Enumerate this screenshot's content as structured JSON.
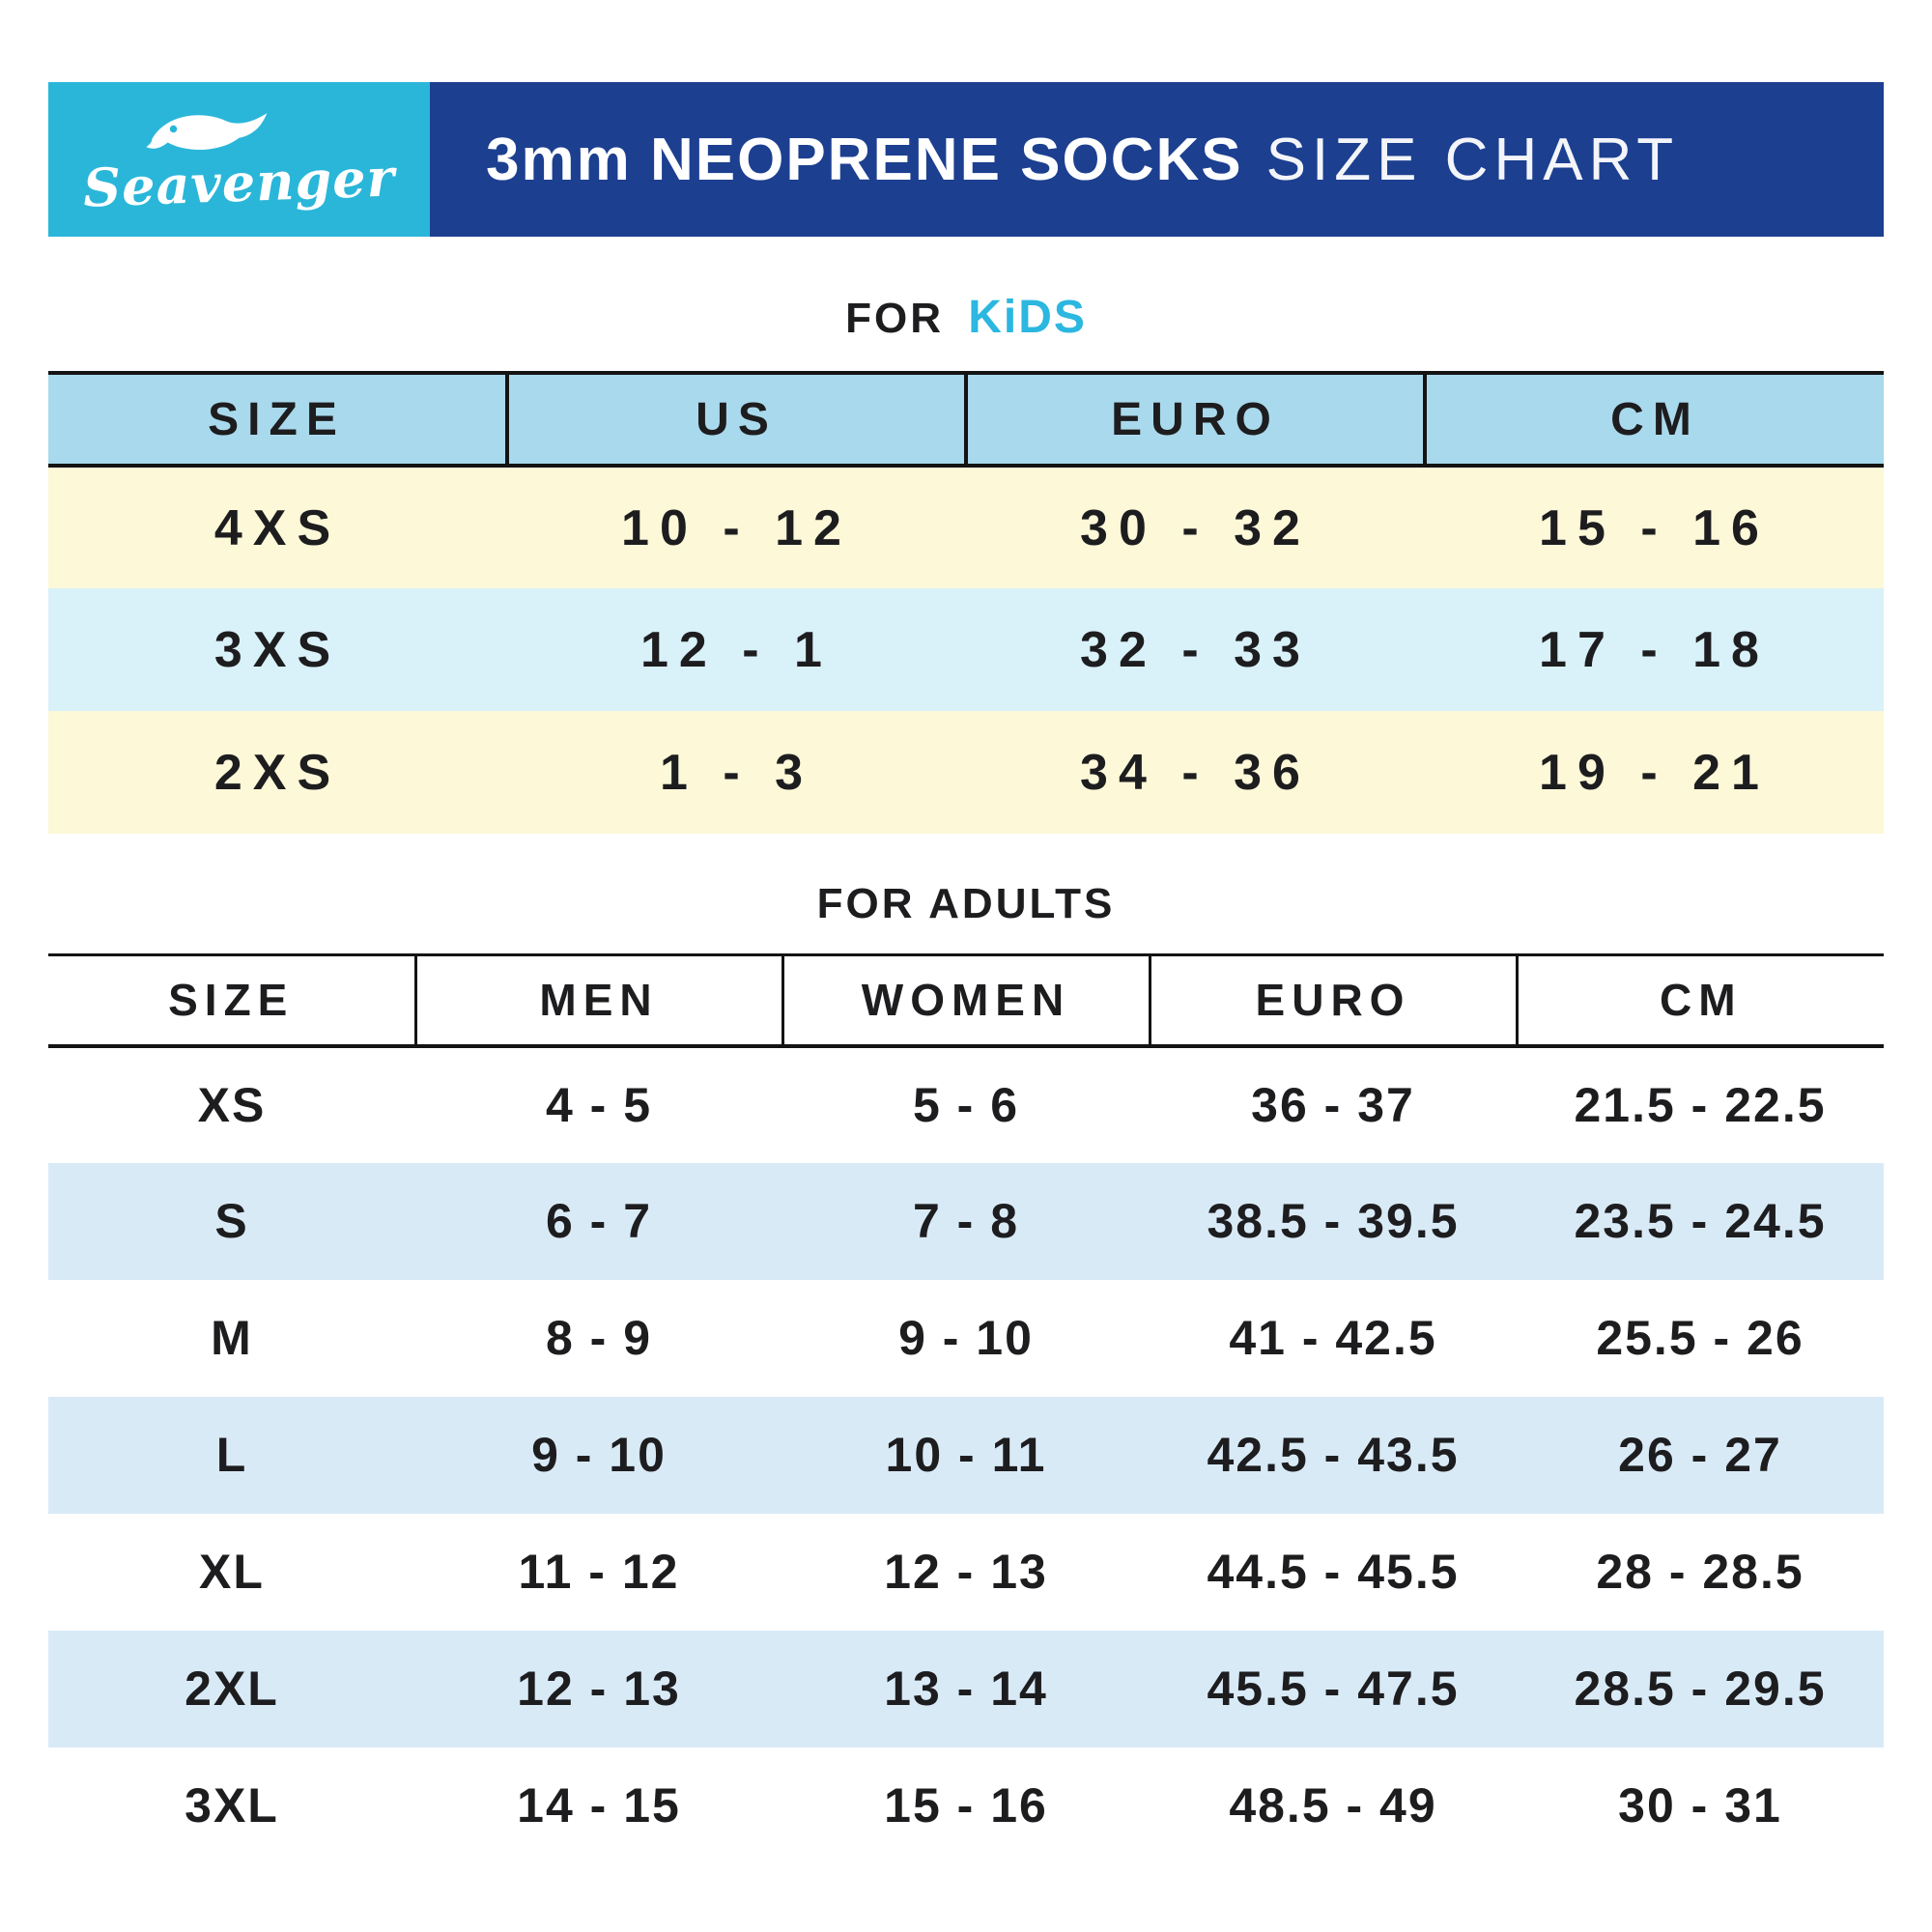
{
  "theme": {
    "brand_bg": "#2ab6d9",
    "bar_bg": "#1c3f90",
    "kids_header_bg": "#a9d9ec",
    "accent_kids": "#2bb7e0",
    "text": "#1d1d1f",
    "kids_row_cream": "#fcf8d8",
    "kids_row_cyan": "#d9f1f9",
    "adults_row_blue": "#d9eaf7"
  },
  "header": {
    "brand": "Seavenger",
    "title_bold": "3mm NEOPRENE SOCKS",
    "title_light": "SIZE CHART"
  },
  "kids": {
    "heading_prefix": "FOR",
    "heading_accent": "KiDS",
    "columns": [
      "SIZE",
      "US",
      "EURO",
      "CM"
    ],
    "rows": [
      [
        "4XS",
        "10 - 12",
        "30 - 32",
        "15 - 16"
      ],
      [
        "3XS",
        "12 - 1",
        "32 - 33",
        "17 - 18"
      ],
      [
        "2XS",
        "1 - 3",
        "34 - 36",
        "19 - 21"
      ]
    ],
    "row_colors": [
      "#fcf8d8",
      "#d9f1f9",
      "#fcf8d8"
    ]
  },
  "adults": {
    "heading": "FOR ADULTS",
    "columns": [
      "SIZE",
      "MEN",
      "WOMEN",
      "EURO",
      "CM"
    ],
    "rows": [
      [
        "XS",
        "4 - 5",
        "5 - 6",
        "36 - 37",
        "21.5 - 22.5"
      ],
      [
        "S",
        "6 - 7",
        "7 - 8",
        "38.5 - 39.5",
        "23.5 - 24.5"
      ],
      [
        "M",
        "8 - 9",
        "9 - 10",
        "41 - 42.5",
        "25.5 - 26"
      ],
      [
        "L",
        "9 - 10",
        "10 - 11",
        "42.5 - 43.5",
        "26 - 27"
      ],
      [
        "XL",
        "11 - 12",
        "12 - 13",
        "44.5 - 45.5",
        "28 - 28.5"
      ],
      [
        "2XL",
        "12 - 13",
        "13 - 14",
        "45.5 - 47.5",
        "28.5 - 29.5"
      ],
      [
        "3XL",
        "14 - 15",
        "15 - 16",
        "48.5 - 49",
        "30 - 31"
      ]
    ],
    "row_colors": [
      "#ffffff",
      "#d9eaf7",
      "#ffffff",
      "#d9eaf7",
      "#ffffff",
      "#d9eaf7",
      "#ffffff"
    ]
  }
}
